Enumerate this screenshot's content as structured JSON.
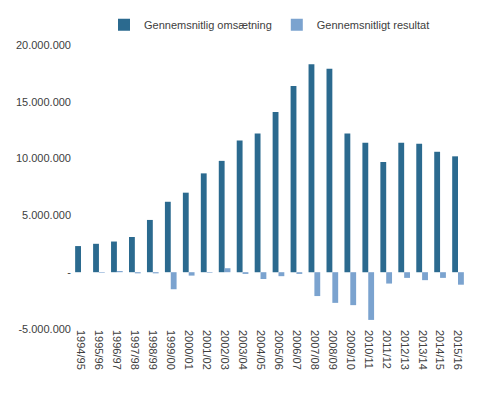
{
  "chart_data": {
    "type": "bar",
    "categories": [
      "1994/95",
      "1995/96",
      "1996/97",
      "1997/98",
      "1998/99",
      "1999/00",
      "2000/01",
      "2001/02",
      "2002/03",
      "2003/04",
      "2004/05",
      "2005/06",
      "2006/07",
      "2007/08",
      "2008/09",
      "2009/10",
      "2010/11",
      "2011/12",
      "2012/13",
      "2013/14",
      "2014/15",
      "2015/16"
    ],
    "series": [
      {
        "name": "Gennemsnitlig omsætning",
        "color": "#2b6a8f",
        "values": [
          2300000,
          2500000,
          2700000,
          3100000,
          4600000,
          6200000,
          7000000,
          8700000,
          9800000,
          11600000,
          12200000,
          14100000,
          16400000,
          18300000,
          17900000,
          12200000,
          11400000,
          9700000,
          11400000,
          11300000,
          10600000,
          10200000
        ]
      },
      {
        "name": "Gennemsnitligt resultat",
        "color": "#7ba3cf",
        "values": [
          0,
          -50000,
          100000,
          -100000,
          -100000,
          -1500000,
          -300000,
          -50000,
          350000,
          -150000,
          -600000,
          -350000,
          -150000,
          -2100000,
          -2700000,
          -2900000,
          -4200000,
          -1000000,
          -500000,
          -700000,
          -500000,
          -1100000
        ]
      }
    ],
    "ylim": [
      -5000000,
      20000000
    ],
    "yticks": [
      {
        "value": -5000000,
        "label": "-5.000.000"
      },
      {
        "value": 0,
        "label": "-"
      },
      {
        "value": 5000000,
        "label": "5.000.000"
      },
      {
        "value": 10000000,
        "label": "10.000.000"
      },
      {
        "value": 15000000,
        "label": "15.000.000"
      },
      {
        "value": 20000000,
        "label": "20.000.000"
      }
    ],
    "grid": false,
    "legend": "top"
  }
}
